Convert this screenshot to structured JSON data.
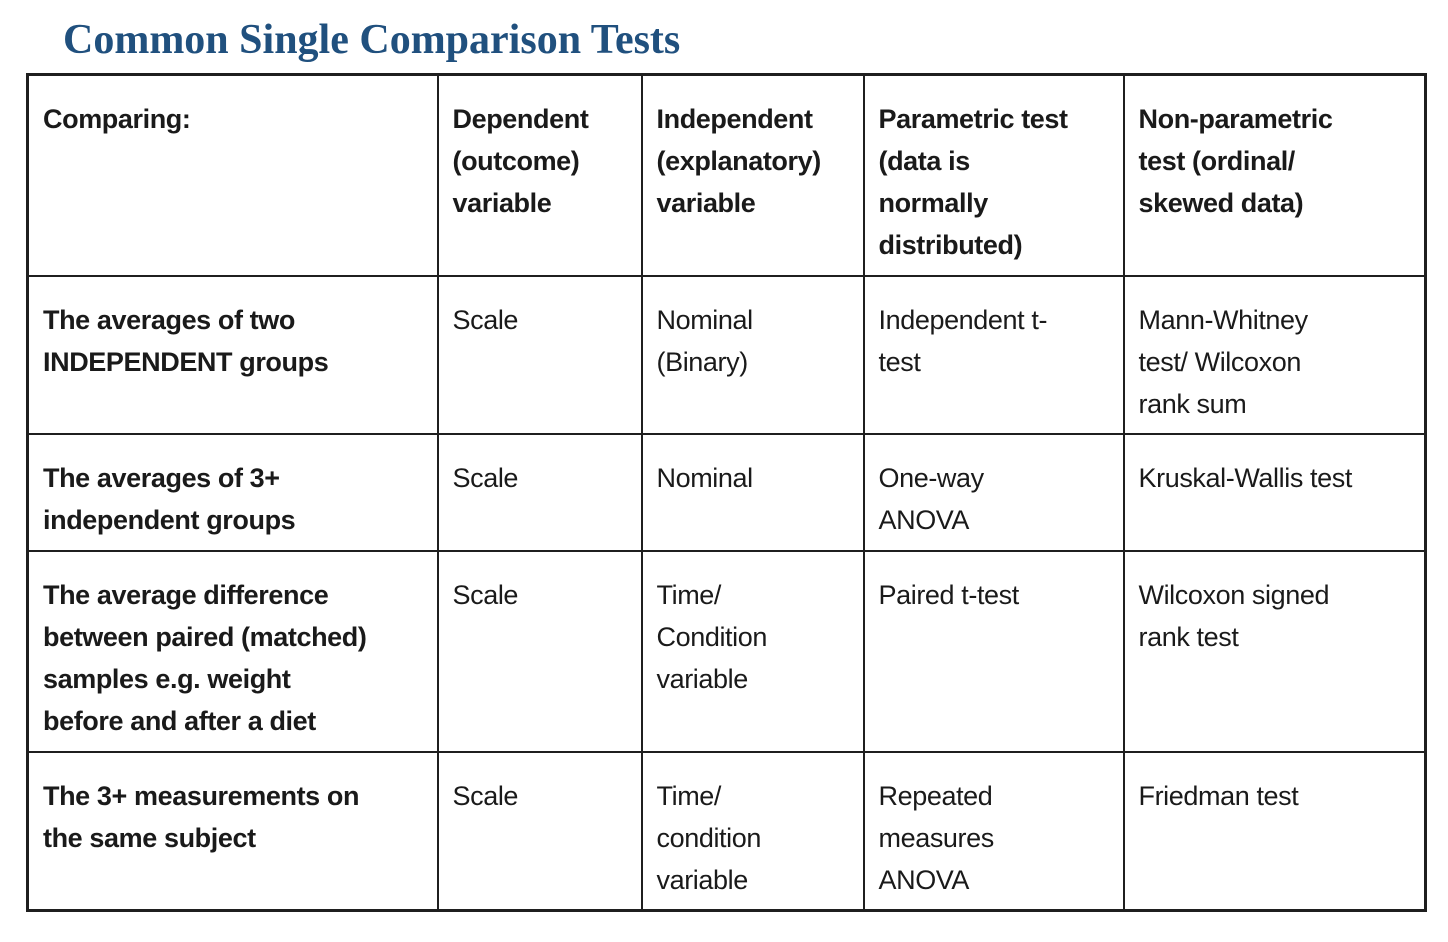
{
  "page": {
    "title": "Common Single Comparison Tests",
    "title_color": "#20507e"
  },
  "table": {
    "headers": [
      "Comparing:",
      "Dependent\n(outcome)\nvariable",
      "Independent\n(explanatory)\nvariable",
      "Parametric test\n(data is\nnormally\ndistributed)",
      "Non-parametric\ntest (ordinal/\nskewed data)"
    ],
    "rows": [
      [
        "The averages of two\nINDEPENDENT groups",
        "Scale",
        "Nominal\n(Binary)",
        "Independent t-\ntest",
        "Mann-Whitney\ntest/ Wilcoxon\nrank sum"
      ],
      [
        "The averages of 3+\nindependent groups",
        "Scale",
        "Nominal",
        "One-way\nANOVA",
        "Kruskal-Wallis test"
      ],
      [
        "The average difference\nbetween paired (matched)\nsamples e.g. weight\nbefore and after a diet",
        "Scale",
        "Time/\nCondition\nvariable",
        "Paired t-test",
        "Wilcoxon signed\nrank test"
      ],
      [
        "The 3+ measurements on\nthe same subject",
        "Scale",
        "Time/\ncondition\nvariable",
        "Repeated\nmeasures\nANOVA",
        "Friedman test"
      ]
    ]
  }
}
